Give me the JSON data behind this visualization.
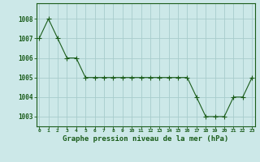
{
  "x": [
    0,
    1,
    2,
    3,
    4,
    5,
    6,
    7,
    8,
    9,
    10,
    11,
    12,
    13,
    14,
    15,
    16,
    17,
    18,
    19,
    20,
    21,
    22,
    23
  ],
  "y": [
    1007,
    1008,
    1007,
    1006,
    1006,
    1005,
    1005,
    1005,
    1005,
    1005,
    1005,
    1005,
    1005,
    1005,
    1005,
    1005,
    1005,
    1004,
    1003,
    1003,
    1003,
    1004,
    1004,
    1005
  ],
  "line_color": "#1a5c1a",
  "marker_color": "#1a5c1a",
  "bg_color": "#cce8e8",
  "grid_color": "#a8cccc",
  "xlabel": "Graphe pression niveau de la mer (hPa)",
  "xlabel_color": "#1a5c1a",
  "tick_color": "#1a5c1a",
  "ylim_min": 1002.5,
  "ylim_max": 1008.8,
  "yticks": [
    1003,
    1004,
    1005,
    1006,
    1007,
    1008
  ],
  "xticks": [
    0,
    1,
    2,
    3,
    4,
    5,
    6,
    7,
    8,
    9,
    10,
    11,
    12,
    13,
    14,
    15,
    16,
    17,
    18,
    19,
    20,
    21,
    22,
    23
  ]
}
